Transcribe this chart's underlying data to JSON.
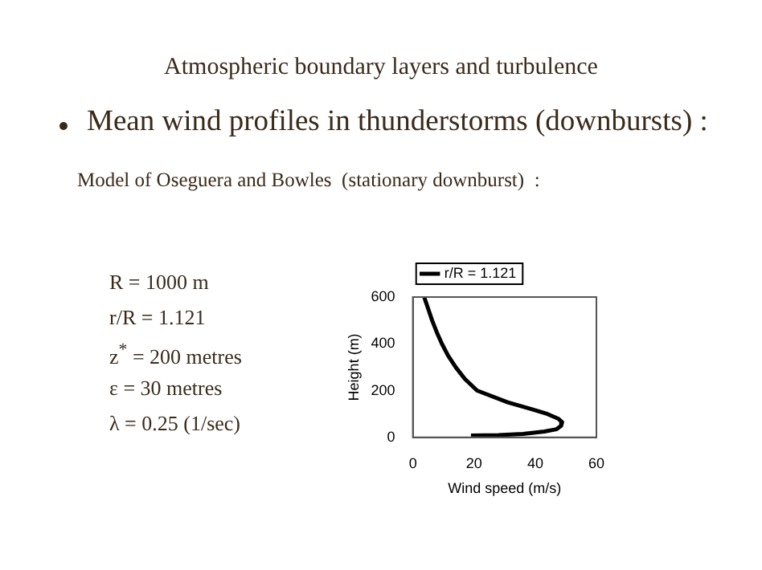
{
  "chart_data": {
    "type": "line",
    "title": "Atmospheric boundary layers and turbulence",
    "subtitle": "Mean wind profiles in thunderstorms (downbursts) :",
    "annotations": [
      "Model of Oseguera and Bowles  (stationary downburst)  :",
      "R = 1000 m",
      "r/R = 1.121",
      "z$^{*}$ = 200 metres",
      "ε = 30 metres",
      "λ = 0.25 (1/sec)"
    ],
    "xlabel": "Wind speed (m/s)",
    "ylabel": "Height (m)",
    "series": [
      {
        "name": "r/R = 1.121",
        "color": "#000000",
        "x": [
          3.7,
          5,
          6.3,
          7.8,
          9.5,
          11.5,
          14,
          17,
          21,
          31,
          39,
          44,
          47.5,
          48.8,
          48.5,
          47,
          43,
          36,
          28,
          19
        ],
        "values": [
          600,
          550,
          500,
          450,
          400,
          350,
          300,
          250,
          200,
          150,
          120,
          100,
          80,
          65,
          50,
          35,
          25,
          15,
          10,
          8
        ]
      }
    ],
    "xlim": [
      0,
      60
    ],
    "xticks": [
      0,
      20,
      40,
      60
    ],
    "ylim": [
      0,
      600
    ],
    "yticks": [
      0,
      200,
      400,
      600
    ],
    "grid": false,
    "legend": "top",
    "marker": "none",
    "line_style": "solid"
  }
}
